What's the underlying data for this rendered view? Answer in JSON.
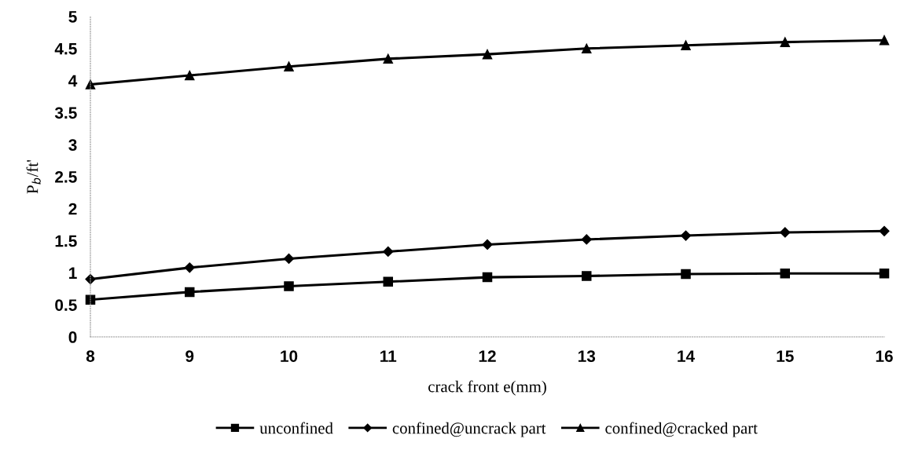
{
  "chart_data": {
    "type": "line",
    "xlabel": "crack front e(mm)",
    "ylabel": "P$_{b}$/ft'",
    "x": [
      8,
      9,
      10,
      11,
      12,
      13,
      14,
      15,
      16
    ],
    "series": [
      {
        "name": "unconfined",
        "color": "#000000",
        "marker": "square",
        "values": [
          0.58,
          0.7,
          0.79,
          0.86,
          0.93,
          0.95,
          0.98,
          0.99,
          0.99
        ]
      },
      {
        "name": "confined@uncrack part",
        "color": "#000000",
        "marker": "diamond",
        "values": [
          0.9,
          1.08,
          1.22,
          1.33,
          1.44,
          1.52,
          1.58,
          1.63,
          1.65
        ]
      },
      {
        "name": "confined@cracked part",
        "color": "#000000",
        "marker": "triangle",
        "values": [
          3.94,
          4.08,
          4.22,
          4.34,
          4.41,
          4.5,
          4.55,
          4.6,
          4.63
        ]
      }
    ],
    "xlim": [
      8,
      16
    ],
    "xticks": [
      8,
      9,
      10,
      11,
      12,
      13,
      14,
      15,
      16
    ],
    "ylim": [
      0,
      5
    ],
    "yticks": [
      0,
      0.5,
      1,
      1.5,
      2,
      2.5,
      3,
      3.5,
      4,
      4.5,
      5
    ],
    "grid": false,
    "legend": "bottom",
    "line_style": "solid"
  }
}
